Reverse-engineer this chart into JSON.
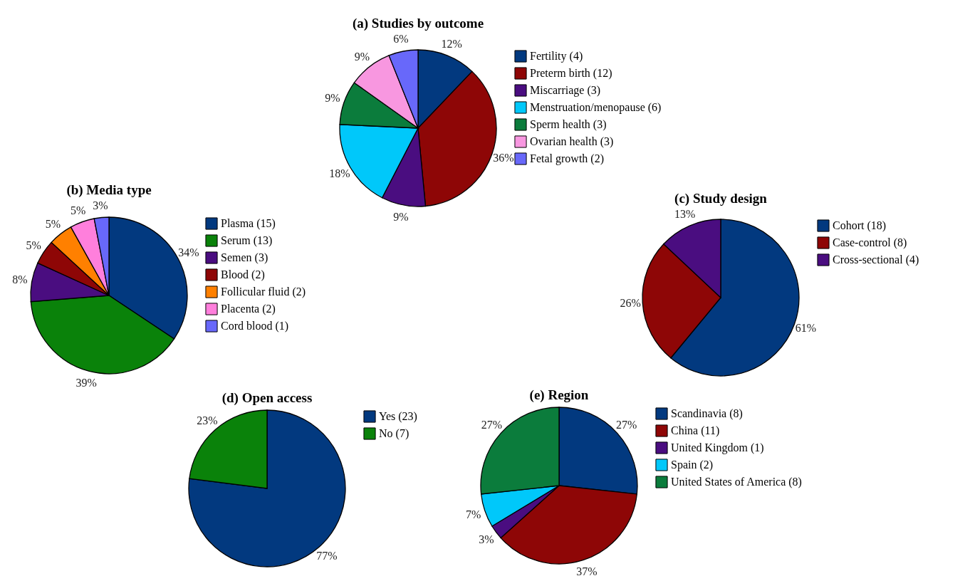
{
  "chart_data": [
    {
      "type": "pie",
      "title": "(a)  Studies by outcome",
      "categories": [
        "Fertility (4)",
        "Preterm birth (12)",
        "Miscarriage (3)",
        "Menstruation/menopause (6)",
        "Sperm health (3)",
        "Ovarian health (3)",
        "Fetal growth (2)"
      ],
      "values": [
        12,
        36,
        9,
        18,
        9,
        9,
        6
      ],
      "colors": [
        "#02397f",
        "#8e0606",
        "#4a0d80",
        "#00c8fa",
        "#0b7c3c",
        "#f897e0",
        "#6868fa"
      ],
      "value_labels": [
        "12%",
        "36%",
        "9%",
        "18%",
        "9%",
        "9%",
        "6%"
      ],
      "legend": "right"
    },
    {
      "type": "pie",
      "title": "(b)  Media type",
      "categories": [
        "Plasma (15)",
        "Serum (13)",
        "Semen (3)",
        "Blood (2)",
        "Follicular fluid (2)",
        "Placenta (2)",
        "Cord blood (1)"
      ],
      "values": [
        34,
        39,
        8,
        5,
        5,
        5,
        3
      ],
      "colors": [
        "#02397f",
        "#0a820a",
        "#4a0d80",
        "#8e0606",
        "#ff8000",
        "#ff7fdc",
        "#6868fa"
      ],
      "value_labels": [
        "34%",
        "39%",
        "8%",
        "5%",
        "5%",
        "5%",
        "3%"
      ],
      "legend": "right"
    },
    {
      "type": "pie",
      "title": "(c)  Study design",
      "categories": [
        "Cohort (18)",
        "Case-control (8)",
        "Cross-sectional (4)"
      ],
      "values": [
        61,
        26,
        13
      ],
      "colors": [
        "#02397f",
        "#8e0606",
        "#4a0d80"
      ],
      "value_labels": [
        "61%",
        "26%",
        "13%"
      ],
      "legend": "right"
    },
    {
      "type": "pie",
      "title": "(d)  Open access",
      "categories": [
        "Yes (23)",
        "No (7)"
      ],
      "values": [
        77,
        23
      ],
      "colors": [
        "#02397f",
        "#0a820a"
      ],
      "value_labels": [
        "77%",
        "23%"
      ],
      "legend": "right"
    },
    {
      "type": "pie",
      "title": "(e)  Region",
      "categories": [
        "Scandinavia (8)",
        "China (11)",
        "United Kingdom (1)",
        "Spain (2)",
        "United States of America (8)"
      ],
      "values": [
        27,
        37,
        3,
        7,
        27
      ],
      "colors": [
        "#02397f",
        "#8e0606",
        "#4a0d80",
        "#00c8fa",
        "#0b7c3c"
      ],
      "value_labels": [
        "27%",
        "37%",
        "3%",
        "7%",
        "27%"
      ],
      "legend": "right"
    }
  ]
}
